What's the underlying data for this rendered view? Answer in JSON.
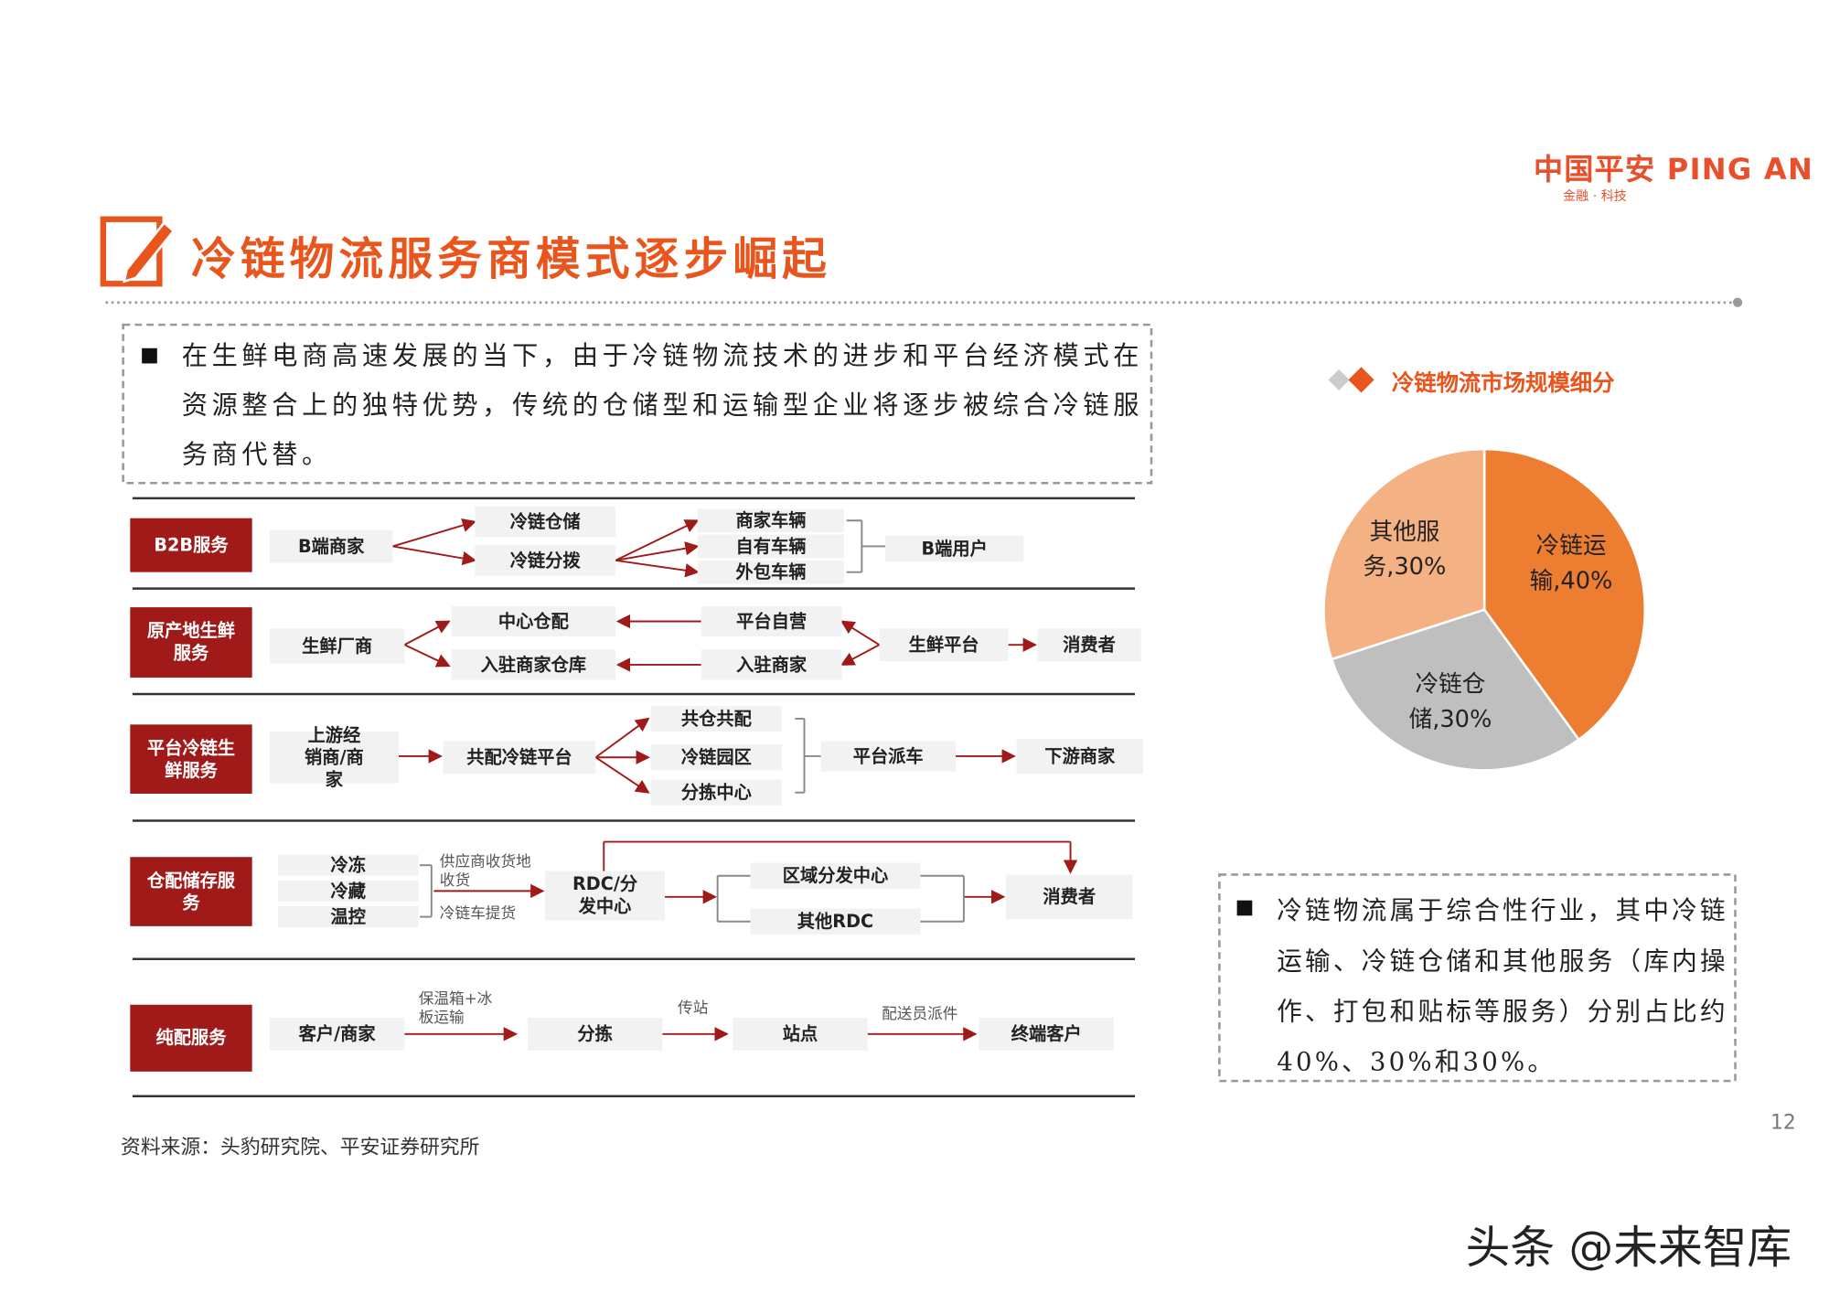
{
  "header": {
    "logo": "中国平安",
    "logo_en": "PING AN",
    "logo_sub": "金融 · 科技"
  },
  "title": "冷链物流服务商模式逐步崛起",
  "intro": "在生鲜电商高速发展的当下，由于冷链物流技术的进步和平台经济模式在资源整合上的独特优势，传统的仓储型和运输型企业将逐步被综合冷链服务商代替。",
  "diagram": {
    "rows": [
      {
        "label": "B2B服务",
        "nodes": [
          "B端商家",
          "冷链仓储",
          "冷链分拨",
          "商家车辆",
          "自有车辆",
          "外包车辆",
          "B端用户"
        ],
        "edge_labels": []
      },
      {
        "label": "原产地生鲜服务",
        "nodes": [
          "生鲜厂商",
          "中心仓配",
          "入驻商家仓库",
          "平台自营",
          "入驻商家",
          "生鲜平台",
          "消费者"
        ],
        "edge_labels": []
      },
      {
        "label": "平台冷链生鲜服务",
        "nodes": [
          "上游经销商/商家",
          "共配冷链平台",
          "共仓共配",
          "冷链园区",
          "分拣中心",
          "平台派车",
          "下游商家"
        ],
        "edge_labels": []
      },
      {
        "label": "仓配储存服务",
        "nodes": [
          "冷冻",
          "冷藏",
          "温控",
          "RDC/分发中心",
          "区域分发中心",
          "其他RDC",
          "消费者"
        ],
        "edge_labels": [
          "供应商收货地收货",
          "冷链车提货"
        ]
      },
      {
        "label": "纯配服务",
        "nodes": [
          "客户/商家",
          "分拣",
          "站点",
          "终端客户"
        ],
        "edge_labels": [
          "保温箱+冰板运输",
          "传站",
          "配送员派件"
        ]
      }
    ]
  },
  "chart_data": {
    "type": "pie",
    "title": "冷链物流市场规模细分",
    "values": [
      40,
      30,
      30
    ],
    "value_labels": [
      "冷链运输,40%",
      "冷链仓储,30%",
      "其他服务,30%"
    ],
    "colors": [
      "#ed7d31",
      "#bfbfbf",
      "#f4b183"
    ]
  },
  "summary": "冷链物流属于综合性行业，其中冷链运输、冷链仓储和其他服务（库内操作、打包和贴标等服务）分别占比约40%、30%和30%。",
  "source": "资料来源：头豹研究院、平安证券研究所",
  "page_number": "12",
  "watermark": "头条 @未来智库"
}
